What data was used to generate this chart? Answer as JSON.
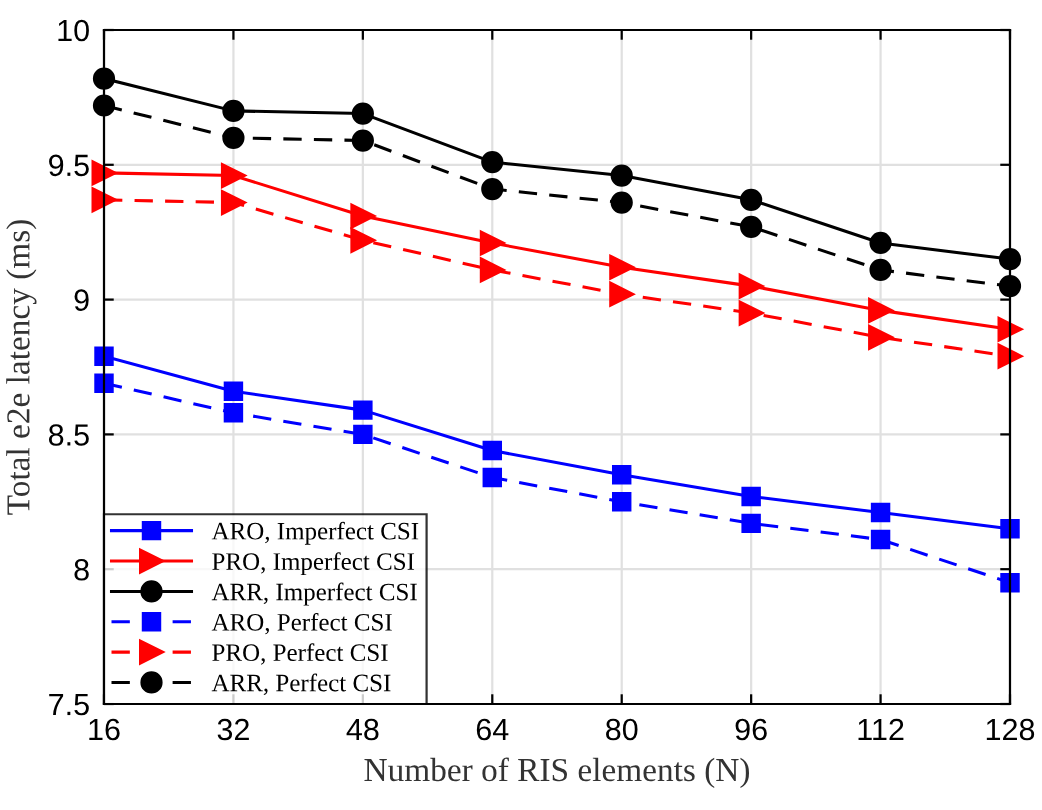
{
  "chart_data": {
    "type": "line",
    "xlabel": "Number of RIS elements (N)",
    "ylabel": "Total e2e latency (ms)",
    "x": [
      16,
      32,
      48,
      64,
      80,
      96,
      112,
      128
    ],
    "xlim": [
      16,
      128
    ],
    "xticks": [
      16,
      32,
      48,
      64,
      80,
      96,
      112,
      128
    ],
    "ylim": [
      7.5,
      10
    ],
    "yticks": [
      7.5,
      8,
      8.5,
      9,
      9.5,
      10
    ],
    "grid": true,
    "legend": "bottom left",
    "series": [
      {
        "name": "ARO, Imperfect CSI",
        "color": "#0000ff",
        "marker": "square",
        "line_style": "solid",
        "values": [
          8.79,
          8.66,
          8.59,
          8.44,
          8.35,
          8.27,
          8.21,
          8.15
        ]
      },
      {
        "name": "PRO, Imperfect CSI",
        "color": "#ff0000",
        "marker": "triangle",
        "line_style": "solid",
        "values": [
          9.47,
          9.46,
          9.31,
          9.21,
          9.12,
          9.05,
          8.96,
          8.89
        ]
      },
      {
        "name": "ARR, Imperfect CSI",
        "color": "#000000",
        "marker": "circle",
        "line_style": "solid",
        "values": [
          9.82,
          9.7,
          9.69,
          9.51,
          9.46,
          9.37,
          9.21,
          9.15
        ]
      },
      {
        "name": "ARO, Perfect CSI",
        "color": "#0000ff",
        "marker": "square",
        "line_style": "dashed",
        "values": [
          8.69,
          8.58,
          8.5,
          8.34,
          8.25,
          8.17,
          8.11,
          7.95
        ]
      },
      {
        "name": "PRO, Perfect CSI",
        "color": "#ff0000",
        "marker": "triangle",
        "line_style": "dashed",
        "values": [
          9.37,
          9.36,
          9.22,
          9.11,
          9.02,
          8.95,
          8.86,
          8.79
        ]
      },
      {
        "name": "ARR, Perfect CSI",
        "color": "#000000",
        "marker": "circle",
        "line_style": "dashed",
        "values": [
          9.72,
          9.6,
          9.59,
          9.41,
          9.36,
          9.27,
          9.11,
          9.05
        ]
      }
    ]
  }
}
